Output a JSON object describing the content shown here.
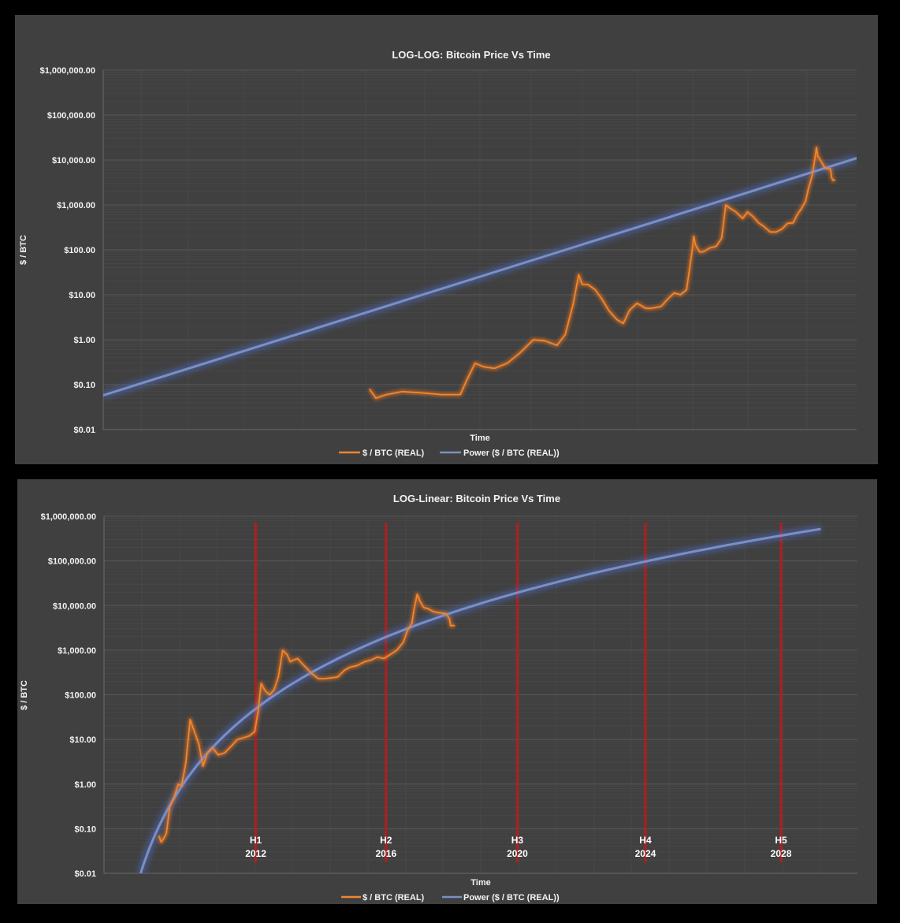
{
  "colors": {
    "background": "#000000",
    "panel": "#404040",
    "grid_major": "#595959",
    "grid_minor": "#4a4a4a",
    "text": "#f2f2f2",
    "price_line": "#f0862d",
    "power_line": "#7b8fc4",
    "halving_line": "#b41e1e"
  },
  "chart_data": [
    {
      "type": "line",
      "title": "LOG-LOG: Bitcoin Price Vs Time",
      "xlabel": "Time",
      "ylabel": "$ / BTC",
      "x_scale": "log",
      "y_scale": "log",
      "x_tick_labels_shown": false,
      "x_units": "days since genesis block",
      "xlim": [
        190,
        4050
      ],
      "ylim": [
        0.01,
        1000000
      ],
      "y_ticks": [
        {
          "value": 1000000,
          "label": "$1,000,000.00"
        },
        {
          "value": 100000,
          "label": "$100,000.00"
        },
        {
          "value": 10000,
          "label": "$10,000.00"
        },
        {
          "value": 1000,
          "label": "$1,000.00"
        },
        {
          "value": 100,
          "label": "$100.00"
        },
        {
          "value": 10,
          "label": "$10.00"
        },
        {
          "value": 1,
          "label": "$1.00"
        },
        {
          "value": 0.1,
          "label": "$0.10"
        },
        {
          "value": 0.01,
          "label": "$0.01"
        }
      ],
      "grid": true,
      "legend_position": "bottom",
      "series": [
        {
          "name": "$ / BTC (REAL)",
          "color": "#f0862d",
          "x": [
            560,
            575,
            600,
            640,
            700,
            750,
            780,
            810,
            830,
            860,
            890,
            930,
            980,
            1030,
            1090,
            1140,
            1200,
            1240,
            1280,
            1290,
            1310,
            1330,
            1360,
            1400,
            1440,
            1480,
            1530,
            1570,
            1610,
            1660,
            1720,
            1760,
            1830,
            1880,
            1930,
            1980,
            2030,
            2075,
            2090,
            2105,
            2140,
            2170,
            2230,
            2290,
            2340,
            2380,
            2420,
            2480,
            2550,
            2600,
            2660,
            2720,
            2780,
            2850,
            2920,
            2990,
            3060,
            3130,
            3180,
            3230,
            3290,
            3330,
            3380,
            3410,
            3440,
            3460,
            3480,
            3510,
            3530,
            3550,
            3590,
            3640,
            3660,
            3680,
            3710
          ],
          "y": [
            0.08,
            0.05,
            0.06,
            0.07,
            0.065,
            0.06,
            0.06,
            0.06,
            0.12,
            0.3,
            0.25,
            0.23,
            0.3,
            0.5,
            1.0,
            0.95,
            0.75,
            1.3,
            6.0,
            10,
            28,
            17,
            17,
            13,
            8,
            4.5,
            2.8,
            2.3,
            4.5,
            6.5,
            5,
            5,
            5.5,
            8,
            11,
            10,
            13,
            90,
            200,
            130,
            90,
            90,
            110,
            120,
            180,
            1000,
            850,
            700,
            500,
            700,
            550,
            400,
            330,
            250,
            250,
            290,
            390,
            400,
            600,
            800,
            1200,
            2300,
            4500,
            9000,
            19000,
            12000,
            11000,
            9000,
            8000,
            7000,
            6500,
            6400,
            4000,
            3500,
            3700
          ]
        },
        {
          "name": "Power ($ / BTC (REAL))",
          "color": "#7b8fc4",
          "x": [
            190,
            4050
          ],
          "y": [
            0.058,
            11000
          ]
        }
      ]
    },
    {
      "type": "line",
      "title": "LOG-Linear: Bitcoin Price Vs Time",
      "xlabel": "Time",
      "ylabel": "$ / BTC",
      "x_scale": "linear",
      "y_scale": "log",
      "x_tick_labels_shown": false,
      "x_units": "days since genesis block",
      "xlim": [
        0,
        7000
      ],
      "ylim": [
        0.01,
        1000000
      ],
      "y_ticks": [
        {
          "value": 1000000,
          "label": "$1,000,000.00"
        },
        {
          "value": 100000,
          "label": "$100,000.00"
        },
        {
          "value": 10000,
          "label": "$10,000.00"
        },
        {
          "value": 1000,
          "label": "$1,000.00"
        },
        {
          "value": 100,
          "label": "$100.00"
        },
        {
          "value": 10,
          "label": "$10.00"
        },
        {
          "value": 1,
          "label": "$1.00"
        },
        {
          "value": 0.1,
          "label": "$0.10"
        },
        {
          "value": 0.01,
          "label": "$0.01"
        }
      ],
      "grid": true,
      "legend_position": "bottom",
      "halvings": [
        {
          "x": 1410,
          "label": "H1",
          "year": "2012"
        },
        {
          "x": 2620,
          "label": "H2",
          "year": "2016"
        },
        {
          "x": 3840,
          "label": "H3",
          "year": "2020"
        },
        {
          "x": 5030,
          "label": "H4",
          "year": "2024"
        },
        {
          "x": 6290,
          "label": "H5",
          "year": "2028"
        }
      ],
      "series": [
        {
          "name": "$ / BTC (REAL)",
          "color": "#f0862d",
          "x": [
            510,
            530,
            555,
            580,
            610,
            650,
            690,
            720,
            760,
            800,
            840,
            880,
            920,
            960,
            1010,
            1060,
            1120,
            1180,
            1240,
            1300,
            1350,
            1400,
            1430,
            1460,
            1500,
            1540,
            1580,
            1620,
            1660,
            1700,
            1730,
            1760,
            1800,
            1840,
            1880,
            1930,
            1990,
            2050,
            2110,
            2170,
            2230,
            2290,
            2350,
            2420,
            2480,
            2540,
            2600,
            2660,
            2720,
            2780,
            2820,
            2860,
            2880,
            2910,
            2940,
            2970,
            3010,
            3050,
            3090,
            3130,
            3180,
            3210,
            3220,
            3240,
            3260
          ],
          "y": [
            0.07,
            0.05,
            0.06,
            0.08,
            0.3,
            0.5,
            1.0,
            0.9,
            3,
            28,
            15,
            8,
            2.5,
            5,
            6.5,
            4.5,
            5,
            7,
            10,
            11,
            12,
            15,
            40,
            180,
            120,
            100,
            130,
            250,
            1000,
            800,
            550,
            600,
            650,
            500,
            400,
            300,
            230,
            230,
            240,
            250,
            350,
            420,
            450,
            550,
            600,
            700,
            650,
            800,
            1000,
            1500,
            2800,
            4000,
            8000,
            18000,
            12000,
            9000,
            8500,
            7500,
            7000,
            6800,
            6500,
            5000,
            3500,
            3600,
            3500
          ]
        },
        {
          "name": "Power ($ / BTC (REAL))",
          "color": "#7b8fc4",
          "x": [
            340,
            6660
          ],
          "y": [
            0.01,
            520000
          ]
        }
      ]
    }
  ]
}
